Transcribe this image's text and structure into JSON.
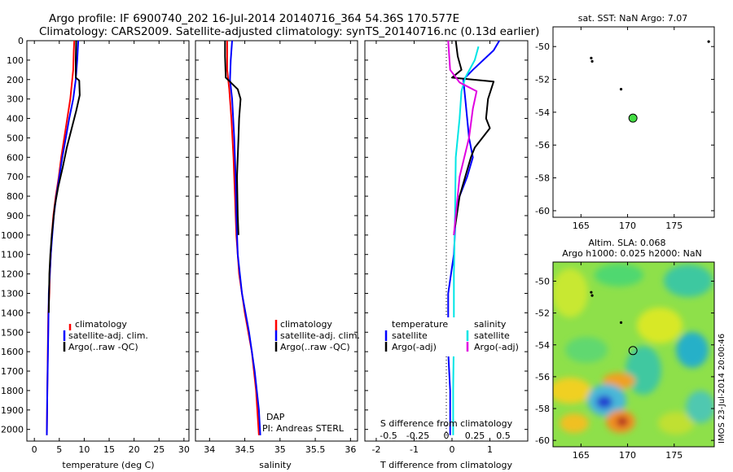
{
  "header": {
    "line1": "Argo profile: IF 6900740_202 16-Jul-2014 20140716_364 54.36S 170.577E",
    "line2": "Climatology: CARS2009. Satellite-adjusted climatology: synTS_20140716.nc (0.13d earlier)"
  },
  "colors": {
    "climatology": "#ff0000",
    "satellite": "#0000ff",
    "argo": "#000000",
    "sat_salinity": "#00e5e5",
    "argo_salinity": "#e000e0",
    "float_marker": "#44dd44"
  },
  "panels": {
    "temperature": {
      "xlabel": "temperature (deg C)",
      "legend": [
        "climatology",
        "satellite-adj. clim.",
        "Argo(..raw -QC)"
      ]
    },
    "salinity": {
      "xlabel": "salinity",
      "legend": [
        "climatology",
        "satellite-adj. clim.",
        "Argo(..raw -QC)"
      ],
      "credit1": "DAP",
      "credit2": "PI: Andreas STERL"
    },
    "difference": {
      "xlabel": "T difference from climatology",
      "top_label": "S difference from climatology",
      "legend_temp_header": "temperature",
      "legend_sal_header": "salinity",
      "legend_temp": [
        "satellite",
        "Argo(-adj)"
      ],
      "legend_sal": [
        "satellite",
        "Argo(-adj)"
      ]
    },
    "sst_map": {
      "title": "sat. SST: NaN Argo: 7.07"
    },
    "sla_map": {
      "title1": "Altim. SLA: 0.068",
      "title2": "Argo h1000: 0.025 h2000: NaN",
      "side_text": "IMOS 23-Jul-2014 20:00:46"
    }
  },
  "chart_data": [
    {
      "type": "line",
      "id": "temperature",
      "xlabel": "temperature (deg C)",
      "xlim": [
        -1.5,
        31
      ],
      "xticks": [
        0,
        5,
        10,
        15,
        20,
        25,
        30
      ],
      "ylim": [
        2060,
        0
      ],
      "yticks": [
        0,
        100,
        200,
        300,
        400,
        500,
        600,
        700,
        800,
        900,
        1000,
        1100,
        1200,
        1300,
        1400,
        1500,
        1600,
        1700,
        1800,
        1900,
        2000
      ],
      "grid": false,
      "legend": "lower-left",
      "series": [
        {
          "name": "climatology",
          "color": "red",
          "points": [
            [
              8.0,
              0
            ],
            [
              7.9,
              50
            ],
            [
              7.8,
              150
            ],
            [
              7.6,
              200
            ],
            [
              7.2,
              300
            ],
            [
              6.6,
              400
            ],
            [
              6.0,
              500
            ],
            [
              5.4,
              600
            ],
            [
              4.9,
              700
            ],
            [
              4.3,
              800
            ],
            [
              3.8,
              900
            ],
            [
              3.5,
              1000
            ],
            [
              3.3,
              1100
            ],
            [
              3.1,
              1200
            ],
            [
              3.0,
              1300
            ],
            [
              2.8,
              1400
            ],
            [
              2.7,
              1600
            ],
            [
              2.6,
              1800
            ],
            [
              2.5,
              2030
            ]
          ]
        },
        {
          "name": "satellite-adj. clim.",
          "color": "blue",
          "points": [
            [
              8.8,
              0
            ],
            [
              8.6,
              100
            ],
            [
              8.3,
              200
            ],
            [
              7.8,
              300
            ],
            [
              7.0,
              400
            ],
            [
              6.3,
              500
            ],
            [
              5.6,
              600
            ],
            [
              5.0,
              700
            ],
            [
              4.4,
              800
            ],
            [
              3.9,
              900
            ],
            [
              3.6,
              1000
            ],
            [
              3.3,
              1100
            ],
            [
              3.1,
              1200
            ],
            [
              2.9,
              1300
            ],
            [
              2.8,
              1500
            ],
            [
              2.6,
              1800
            ],
            [
              2.5,
              2030
            ]
          ]
        },
        {
          "name": "Argo(..raw -QC)",
          "color": "black",
          "points": [
            [
              8.4,
              0
            ],
            [
              8.3,
              100
            ],
            [
              8.3,
              190
            ],
            [
              9.0,
              205
            ],
            [
              9.1,
              280
            ],
            [
              8.4,
              360
            ],
            [
              7.5,
              450
            ],
            [
              6.5,
              550
            ],
            [
              5.7,
              650
            ],
            [
              4.8,
              750
            ],
            [
              4.1,
              850
            ],
            [
              3.5,
              1000
            ],
            [
              3.2,
              1100
            ],
            [
              3.0,
              1200
            ],
            [
              2.9,
              1400
            ]
          ]
        }
      ]
    },
    {
      "type": "line",
      "id": "salinity",
      "xlabel": "salinity",
      "xlim": [
        33.8,
        36.1
      ],
      "xticks": [
        34,
        34.5,
        35,
        35.5,
        36
      ],
      "ylim": [
        2060,
        0
      ],
      "grid": false,
      "legend": "lower-right",
      "series": [
        {
          "name": "climatology",
          "color": "red",
          "points": [
            [
              34.25,
              0
            ],
            [
              34.25,
              150
            ],
            [
              34.28,
              250
            ],
            [
              34.31,
              400
            ],
            [
              34.34,
              600
            ],
            [
              34.36,
              800
            ],
            [
              34.38,
              1000
            ],
            [
              34.42,
              1200
            ],
            [
              34.5,
              1400
            ],
            [
              34.6,
              1600
            ],
            [
              34.66,
              1800
            ],
            [
              34.7,
              2030
            ]
          ]
        },
        {
          "name": "satellite-adj. clim.",
          "color": "blue",
          "points": [
            [
              34.32,
              0
            ],
            [
              34.3,
              100
            ],
            [
              34.29,
              200
            ],
            [
              34.32,
              300
            ],
            [
              34.35,
              500
            ],
            [
              34.37,
              700
            ],
            [
              34.38,
              900
            ],
            [
              34.4,
              1100
            ],
            [
              34.46,
              1300
            ],
            [
              34.56,
              1500
            ],
            [
              34.64,
              1700
            ],
            [
              34.7,
              1900
            ],
            [
              34.72,
              2030
            ]
          ]
        },
        {
          "name": "Argo(..raw -QC)",
          "color": "black",
          "points": [
            [
              34.22,
              0
            ],
            [
              34.22,
              80
            ],
            [
              34.23,
              190
            ],
            [
              34.3,
              215
            ],
            [
              34.4,
              250
            ],
            [
              34.44,
              300
            ],
            [
              34.42,
              400
            ],
            [
              34.41,
              500
            ],
            [
              34.39,
              700
            ],
            [
              34.4,
              900
            ],
            [
              34.41,
              1000
            ]
          ]
        }
      ]
    },
    {
      "type": "line",
      "id": "difference",
      "xlabel": "T difference from climatology",
      "top_label": "S difference from climatology",
      "xlim": [
        -2.3,
        2.0
      ],
      "xticks": [
        -2,
        -1,
        0,
        1
      ],
      "top_xticks": [
        "-0.5",
        "-0.25",
        "0",
        "0.25",
        "0.5"
      ],
      "ylim": [
        2060,
        0
      ],
      "grid": false,
      "legend": "lower-center",
      "series": [
        {
          "name": "satellite",
          "group": "temperature",
          "color": "blue",
          "points": [
            [
              1.25,
              0
            ],
            [
              1.1,
              50
            ],
            [
              0.55,
              150
            ],
            [
              0.3,
              200
            ],
            [
              0.35,
              300
            ],
            [
              0.4,
              400
            ],
            [
              0.45,
              500
            ],
            [
              0.55,
              600
            ],
            [
              0.4,
              700
            ],
            [
              0.2,
              800
            ],
            [
              0.1,
              900
            ],
            [
              0.05,
              1100
            ],
            [
              -0.1,
              1300
            ],
            [
              -0.1,
              1600
            ],
            [
              -0.05,
              1800
            ],
            [
              -0.05,
              2030
            ]
          ]
        },
        {
          "name": "Argo(-adj)",
          "group": "temperature",
          "color": "black",
          "points": [
            [
              0.1,
              0
            ],
            [
              0.15,
              80
            ],
            [
              0.25,
              150
            ],
            [
              0.0,
              190
            ],
            [
              1.1,
              210
            ],
            [
              0.95,
              300
            ],
            [
              0.9,
              400
            ],
            [
              1.0,
              450
            ],
            [
              0.6,
              550
            ],
            [
              0.5,
              600
            ],
            [
              0.2,
              800
            ],
            [
              0.05,
              1000
            ]
          ]
        },
        {
          "name": "satellite",
          "group": "salinity",
          "color": "cyan",
          "points": [
            [
              0.7,
              30
            ],
            [
              0.6,
              100
            ],
            [
              0.35,
              190
            ],
            [
              0.25,
              260
            ],
            [
              0.2,
              400
            ],
            [
              0.1,
              600
            ],
            [
              0.08,
              900
            ],
            [
              0.05,
              1200
            ],
            [
              0.05,
              1500
            ],
            [
              0.03,
              1800
            ],
            [
              0.03,
              2030
            ]
          ]
        },
        {
          "name": "Argo(-adj)",
          "group": "salinity",
          "color": "magenta",
          "points": [
            [
              -0.1,
              0
            ],
            [
              -0.05,
              150
            ],
            [
              0.2,
              215
            ],
            [
              0.65,
              260
            ],
            [
              0.55,
              350
            ],
            [
              0.45,
              500
            ],
            [
              0.2,
              700
            ],
            [
              0.1,
              900
            ],
            [
              0.05,
              1000
            ]
          ]
        }
      ]
    },
    {
      "type": "scatter",
      "id": "sst_map",
      "title": "sat. SST: NaN Argo: 7.07",
      "xlim": [
        162,
        179.3
      ],
      "ylim": [
        -60.4,
        -48.8
      ],
      "xticks": [
        165,
        170,
        175
      ],
      "yticks": [
        -50,
        -52,
        -54,
        -56,
        -58,
        -60
      ],
      "points": [
        [
          166.1,
          -50.7
        ],
        [
          166.2,
          -50.9
        ],
        [
          169.3,
          -52.6
        ],
        [
          178.7,
          -49.7
        ]
      ],
      "argo_position": [
        170.577,
        -54.36
      ]
    },
    {
      "type": "heatmap",
      "id": "sla_map",
      "title": "Altim. SLA: 0.068",
      "xlim": [
        162,
        179.3
      ],
      "ylim": [
        -60.4,
        -48.8
      ],
      "xticks": [
        165,
        170,
        175
      ],
      "yticks": [
        -50,
        -52,
        -54,
        -56,
        -58,
        -60
      ],
      "points": [
        [
          166.1,
          -50.7
        ],
        [
          166.2,
          -50.9
        ],
        [
          169.3,
          -52.6
        ]
      ],
      "argo_position": [
        170.577,
        -54.36
      ]
    }
  ]
}
